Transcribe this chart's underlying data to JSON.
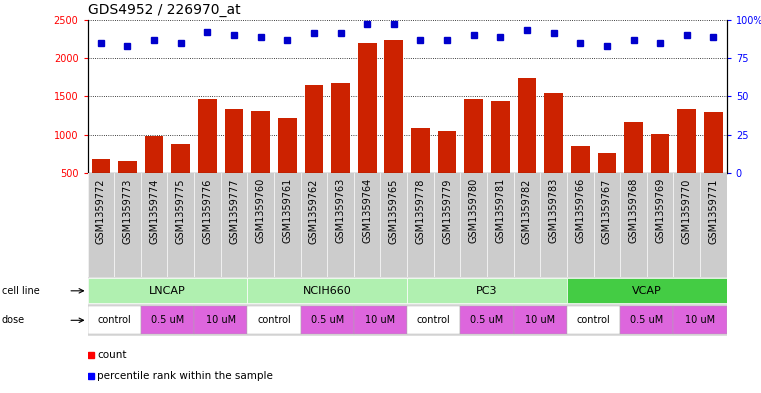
{
  "title": "GDS4952 / 226970_at",
  "samples": [
    "GSM1359772",
    "GSM1359773",
    "GSM1359774",
    "GSM1359775",
    "GSM1359776",
    "GSM1359777",
    "GSM1359760",
    "GSM1359761",
    "GSM1359762",
    "GSM1359763",
    "GSM1359764",
    "GSM1359765",
    "GSM1359778",
    "GSM1359779",
    "GSM1359780",
    "GSM1359781",
    "GSM1359782",
    "GSM1359783",
    "GSM1359766",
    "GSM1359767",
    "GSM1359768",
    "GSM1359769",
    "GSM1359770",
    "GSM1359771"
  ],
  "counts": [
    680,
    650,
    980,
    880,
    1460,
    1340,
    1310,
    1220,
    1650,
    1670,
    2190,
    2230,
    1090,
    1050,
    1460,
    1440,
    1740,
    1540,
    850,
    760,
    1170,
    1010,
    1340,
    1300
  ],
  "percentiles": [
    85,
    83,
    87,
    85,
    92,
    90,
    89,
    87,
    91,
    91,
    97,
    97,
    87,
    87,
    90,
    89,
    93,
    91,
    85,
    83,
    87,
    85,
    90,
    89
  ],
  "cell_lines": [
    {
      "name": "LNCAP",
      "start": 0,
      "end": 6,
      "color": "#b0f0b0"
    },
    {
      "name": "NCIH660",
      "start": 6,
      "end": 12,
      "color": "#b0f0b0"
    },
    {
      "name": "PC3",
      "start": 12,
      "end": 18,
      "color": "#b0f0b0"
    },
    {
      "name": "VCAP",
      "start": 18,
      "end": 24,
      "color": "#44cc44"
    }
  ],
  "doses": [
    {
      "label": "control",
      "start": 0,
      "end": 2,
      "color": "#ffffff"
    },
    {
      "label": "0.5 uM",
      "start": 2,
      "end": 4,
      "color": "#dd66dd"
    },
    {
      "label": "10 uM",
      "start": 4,
      "end": 6,
      "color": "#dd66dd"
    },
    {
      "label": "control",
      "start": 6,
      "end": 8,
      "color": "#ffffff"
    },
    {
      "label": "0.5 uM",
      "start": 8,
      "end": 10,
      "color": "#dd66dd"
    },
    {
      "label": "10 uM",
      "start": 10,
      "end": 12,
      "color": "#dd66dd"
    },
    {
      "label": "control",
      "start": 12,
      "end": 14,
      "color": "#ffffff"
    },
    {
      "label": "0.5 uM",
      "start": 14,
      "end": 16,
      "color": "#dd66dd"
    },
    {
      "label": "10 uM",
      "start": 16,
      "end": 18,
      "color": "#dd66dd"
    },
    {
      "label": "control",
      "start": 18,
      "end": 20,
      "color": "#ffffff"
    },
    {
      "label": "0.5 uM",
      "start": 20,
      "end": 22,
      "color": "#dd66dd"
    },
    {
      "label": "10 uM",
      "start": 22,
      "end": 24,
      "color": "#dd66dd"
    }
  ],
  "bar_color": "#cc2200",
  "dot_color": "#0000cc",
  "ylim_left": [
    500,
    2500
  ],
  "ylim_right": [
    0,
    100
  ],
  "yticks_left": [
    500,
    1000,
    1500,
    2000,
    2500
  ],
  "ytick_labels_left": [
    "500",
    "1000",
    "1500",
    "2000",
    "2500"
  ],
  "yticks_right": [
    0,
    25,
    50,
    75,
    100
  ],
  "ytick_labels_right": [
    "0",
    "25",
    "50",
    "75",
    "100%"
  ],
  "bg_color": "#ffffff",
  "tick_fontsize": 7,
  "label_fontsize": 8,
  "cell_line_fontsize": 8,
  "dose_fontsize": 7,
  "legend_fontsize": 7.5,
  "title_fontsize": 10
}
